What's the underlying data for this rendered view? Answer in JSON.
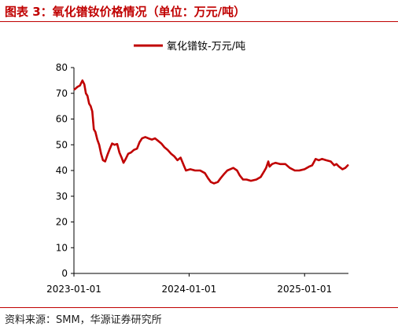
{
  "figure": {
    "title": "图表 3：氧化镨钕价格情况（单位：万元/吨）",
    "source": "资料来源：SMM，华源证券研究所"
  },
  "colors": {
    "accent": "#c00000",
    "series": "#c00000",
    "axis": "#000000"
  },
  "chart_data": {
    "type": "line",
    "title": "",
    "xlabel": "",
    "ylabel": "",
    "ylim": [
      0,
      80
    ],
    "yticks": [
      "0",
      "10",
      "20",
      "30",
      "40",
      "50",
      "60",
      "70",
      "80"
    ],
    "xlim": [
      "2023-01-01",
      "2025-05-20"
    ],
    "xticks": [
      "2023-01-01",
      "2024-01-01",
      "2025-01-01"
    ],
    "grid": false,
    "legend": "top-center",
    "series": [
      {
        "name": "氧化镨钕-万元/吨",
        "points": [
          [
            "2023-01-03",
            71.5
          ],
          [
            "2023-01-12",
            72.5
          ],
          [
            "2023-01-20",
            73.0
          ],
          [
            "2023-01-28",
            75.0
          ],
          [
            "2023-02-03",
            73.5
          ],
          [
            "2023-02-08",
            70.0
          ],
          [
            "2023-02-13",
            69.0
          ],
          [
            "2023-02-18",
            66.0
          ],
          [
            "2023-02-23",
            65.0
          ],
          [
            "2023-02-28",
            63.0
          ],
          [
            "2023-03-05",
            56.0
          ],
          [
            "2023-03-10",
            55.0
          ],
          [
            "2023-03-16",
            52.0
          ],
          [
            "2023-03-22",
            50.0
          ],
          [
            "2023-03-28",
            46.5
          ],
          [
            "2023-04-03",
            44.0
          ],
          [
            "2023-04-10",
            43.5
          ],
          [
            "2023-04-17",
            46.0
          ],
          [
            "2023-04-25",
            48.5
          ],
          [
            "2023-05-02",
            50.5
          ],
          [
            "2023-05-10",
            50.0
          ],
          [
            "2023-05-18",
            50.3
          ],
          [
            "2023-05-25",
            47.0
          ],
          [
            "2023-06-01",
            45.0
          ],
          [
            "2023-06-07",
            43.0
          ],
          [
            "2023-06-14",
            44.5
          ],
          [
            "2023-06-22",
            46.5
          ],
          [
            "2023-07-01",
            47.0
          ],
          [
            "2023-07-10",
            48.0
          ],
          [
            "2023-07-20",
            48.5
          ],
          [
            "2023-07-28",
            51.0
          ],
          [
            "2023-08-05",
            52.5
          ],
          [
            "2023-08-15",
            53.0
          ],
          [
            "2023-08-25",
            52.5
          ],
          [
            "2023-09-05",
            52.0
          ],
          [
            "2023-09-15",
            52.5
          ],
          [
            "2023-09-25",
            51.5
          ],
          [
            "2023-10-05",
            50.5
          ],
          [
            "2023-10-15",
            49.0
          ],
          [
            "2023-10-25",
            48.0
          ],
          [
            "2023-11-05",
            46.5
          ],
          [
            "2023-11-15",
            45.5
          ],
          [
            "2023-11-25",
            44.0
          ],
          [
            "2023-12-05",
            45.0
          ],
          [
            "2023-12-15",
            42.0
          ],
          [
            "2023-12-22",
            40.0
          ],
          [
            "2024-01-05",
            40.5
          ],
          [
            "2024-01-20",
            40.0
          ],
          [
            "2024-02-05",
            40.0
          ],
          [
            "2024-02-20",
            39.0
          ],
          [
            "2024-03-01",
            37.0
          ],
          [
            "2024-03-10",
            35.5
          ],
          [
            "2024-03-20",
            35.0
          ],
          [
            "2024-04-01",
            35.5
          ],
          [
            "2024-04-10",
            37.0
          ],
          [
            "2024-04-20",
            38.5
          ],
          [
            "2024-05-01",
            40.0
          ],
          [
            "2024-05-10",
            40.5
          ],
          [
            "2024-05-20",
            41.0
          ],
          [
            "2024-06-01",
            40.0
          ],
          [
            "2024-06-10",
            38.0
          ],
          [
            "2024-06-20",
            36.5
          ],
          [
            "2024-07-01",
            36.5
          ],
          [
            "2024-07-15",
            36.0
          ],
          [
            "2024-08-01",
            36.5
          ],
          [
            "2024-08-15",
            37.5
          ],
          [
            "2024-08-25",
            39.5
          ],
          [
            "2024-09-01",
            41.0
          ],
          [
            "2024-09-08",
            43.5
          ],
          [
            "2024-09-12",
            41.5
          ],
          [
            "2024-09-20",
            42.5
          ],
          [
            "2024-10-01",
            43.0
          ],
          [
            "2024-10-15",
            42.5
          ],
          [
            "2024-11-01",
            42.5
          ],
          [
            "2024-11-15",
            41.0
          ],
          [
            "2024-12-01",
            40.0
          ],
          [
            "2024-12-15",
            40.0
          ],
          [
            "2025-01-01",
            40.5
          ],
          [
            "2025-01-15",
            41.5
          ],
          [
            "2025-01-25",
            42.0
          ],
          [
            "2025-02-05",
            44.5
          ],
          [
            "2025-02-15",
            44.0
          ],
          [
            "2025-02-25",
            44.5
          ],
          [
            "2025-03-10",
            44.0
          ],
          [
            "2025-03-25",
            43.5
          ],
          [
            "2025-04-05",
            42.0
          ],
          [
            "2025-04-12",
            42.5
          ],
          [
            "2025-04-20",
            41.5
          ],
          [
            "2025-05-01",
            40.5
          ],
          [
            "2025-05-10",
            41.0
          ],
          [
            "2025-05-18",
            42.0
          ]
        ]
      }
    ]
  }
}
